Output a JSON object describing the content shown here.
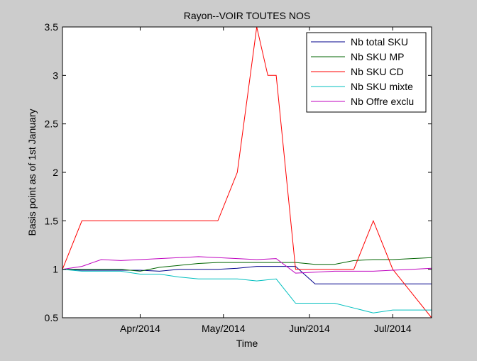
{
  "chart_data": {
    "type": "line",
    "title": "Rayon--VOIR TOUTES NOS",
    "xlabel": "Time",
    "ylabel": "Basis point as of 1st January",
    "x_range": [
      "2014-03-04",
      "2014-07-15"
    ],
    "x_ticks": [
      {
        "date": "2014-04-01",
        "label": "Apr/2014"
      },
      {
        "date": "2014-05-01",
        "label": "May/2014"
      },
      {
        "date": "2014-06-01",
        "label": "Jun/2014"
      },
      {
        "date": "2014-07-01",
        "label": "Jul/2014"
      }
    ],
    "ylim": [
      0.5,
      3.5
    ],
    "y_ticks": [
      "0.5",
      "1",
      "1.5",
      "2",
      "2.5",
      "3",
      "3.5"
    ],
    "y_tick_values": [
      0.5,
      1,
      1.5,
      2,
      2.5,
      3,
      3.5
    ],
    "grid": false,
    "legend_position": "top-right",
    "series": [
      {
        "name": "Nb total SKU",
        "color": "#00008b",
        "points": [
          [
            "2014-03-04",
            1.0
          ],
          [
            "2014-03-11",
            0.99
          ],
          [
            "2014-03-18",
            0.99
          ],
          [
            "2014-03-25",
            0.99
          ],
          [
            "2014-04-01",
            0.99
          ],
          [
            "2014-04-08",
            0.98
          ],
          [
            "2014-04-15",
            1.0
          ],
          [
            "2014-04-22",
            1.0
          ],
          [
            "2014-04-29",
            1.0
          ],
          [
            "2014-05-06",
            1.01
          ],
          [
            "2014-05-13",
            1.03
          ],
          [
            "2014-05-20",
            1.03
          ],
          [
            "2014-05-27",
            1.03
          ],
          [
            "2014-06-03",
            0.85
          ],
          [
            "2014-06-10",
            0.85
          ],
          [
            "2014-06-17",
            0.85
          ],
          [
            "2014-06-24",
            0.85
          ],
          [
            "2014-07-01",
            0.85
          ],
          [
            "2014-07-08",
            0.85
          ],
          [
            "2014-07-15",
            0.85
          ]
        ]
      },
      {
        "name": "Nb SKU MP",
        "color": "#006400",
        "points": [
          [
            "2014-03-04",
            1.0
          ],
          [
            "2014-03-11",
            1.0
          ],
          [
            "2014-03-18",
            1.0
          ],
          [
            "2014-03-25",
            1.0
          ],
          [
            "2014-04-01",
            0.98
          ],
          [
            "2014-04-08",
            1.02
          ],
          [
            "2014-04-15",
            1.04
          ],
          [
            "2014-04-22",
            1.06
          ],
          [
            "2014-04-29",
            1.07
          ],
          [
            "2014-05-06",
            1.07
          ],
          [
            "2014-05-13",
            1.07
          ],
          [
            "2014-05-20",
            1.07
          ],
          [
            "2014-05-27",
            1.07
          ],
          [
            "2014-06-03",
            1.05
          ],
          [
            "2014-06-10",
            1.05
          ],
          [
            "2014-06-17",
            1.09
          ],
          [
            "2014-06-24",
            1.1
          ],
          [
            "2014-07-01",
            1.1
          ],
          [
            "2014-07-08",
            1.11
          ],
          [
            "2014-07-15",
            1.12
          ]
        ]
      },
      {
        "name": "Nb SKU CD",
        "color": "#ff0000",
        "points": [
          [
            "2014-03-04",
            1.0
          ],
          [
            "2014-03-11",
            1.5
          ],
          [
            "2014-03-18",
            1.5
          ],
          [
            "2014-03-25",
            1.5
          ],
          [
            "2014-04-01",
            1.5
          ],
          [
            "2014-04-08",
            1.5
          ],
          [
            "2014-04-15",
            1.5
          ],
          [
            "2014-04-22",
            1.5
          ],
          [
            "2014-04-29",
            1.5
          ],
          [
            "2014-05-06",
            2.0
          ],
          [
            "2014-05-13",
            3.5
          ],
          [
            "2014-05-17",
            3.0
          ],
          [
            "2014-05-20",
            3.0
          ],
          [
            "2014-05-27",
            1.0
          ],
          [
            "2014-06-03",
            1.0
          ],
          [
            "2014-06-10",
            1.0
          ],
          [
            "2014-06-17",
            1.0
          ],
          [
            "2014-06-24",
            1.5
          ],
          [
            "2014-07-01",
            1.0
          ],
          [
            "2014-07-08",
            0.75
          ],
          [
            "2014-07-15",
            0.5
          ]
        ]
      },
      {
        "name": "Nb SKU mixte",
        "color": "#00bfbf",
        "points": [
          [
            "2014-03-04",
            1.0
          ],
          [
            "2014-03-11",
            0.98
          ],
          [
            "2014-03-18",
            0.98
          ],
          [
            "2014-03-25",
            0.98
          ],
          [
            "2014-04-01",
            0.95
          ],
          [
            "2014-04-08",
            0.95
          ],
          [
            "2014-04-15",
            0.92
          ],
          [
            "2014-04-22",
            0.9
          ],
          [
            "2014-04-29",
            0.9
          ],
          [
            "2014-05-06",
            0.9
          ],
          [
            "2014-05-13",
            0.88
          ],
          [
            "2014-05-20",
            0.9
          ],
          [
            "2014-05-27",
            0.65
          ],
          [
            "2014-06-03",
            0.65
          ],
          [
            "2014-06-10",
            0.65
          ],
          [
            "2014-06-17",
            0.6
          ],
          [
            "2014-06-24",
            0.55
          ],
          [
            "2014-07-01",
            0.58
          ],
          [
            "2014-07-08",
            0.58
          ],
          [
            "2014-07-15",
            0.58
          ]
        ]
      },
      {
        "name": "Nb Offre exclu",
        "color": "#bf00bf",
        "points": [
          [
            "2014-03-04",
            1.0
          ],
          [
            "2014-03-11",
            1.03
          ],
          [
            "2014-03-18",
            1.1
          ],
          [
            "2014-03-25",
            1.09
          ],
          [
            "2014-04-01",
            1.1
          ],
          [
            "2014-04-08",
            1.11
          ],
          [
            "2014-04-15",
            1.12
          ],
          [
            "2014-04-22",
            1.13
          ],
          [
            "2014-04-29",
            1.12
          ],
          [
            "2014-05-06",
            1.11
          ],
          [
            "2014-05-13",
            1.1
          ],
          [
            "2014-05-20",
            1.11
          ],
          [
            "2014-05-27",
            0.96
          ],
          [
            "2014-06-03",
            0.97
          ],
          [
            "2014-06-10",
            0.98
          ],
          [
            "2014-06-17",
            0.98
          ],
          [
            "2014-06-24",
            0.98
          ],
          [
            "2014-07-01",
            0.99
          ],
          [
            "2014-07-08",
            1.0
          ],
          [
            "2014-07-15",
            1.01
          ]
        ]
      }
    ]
  }
}
